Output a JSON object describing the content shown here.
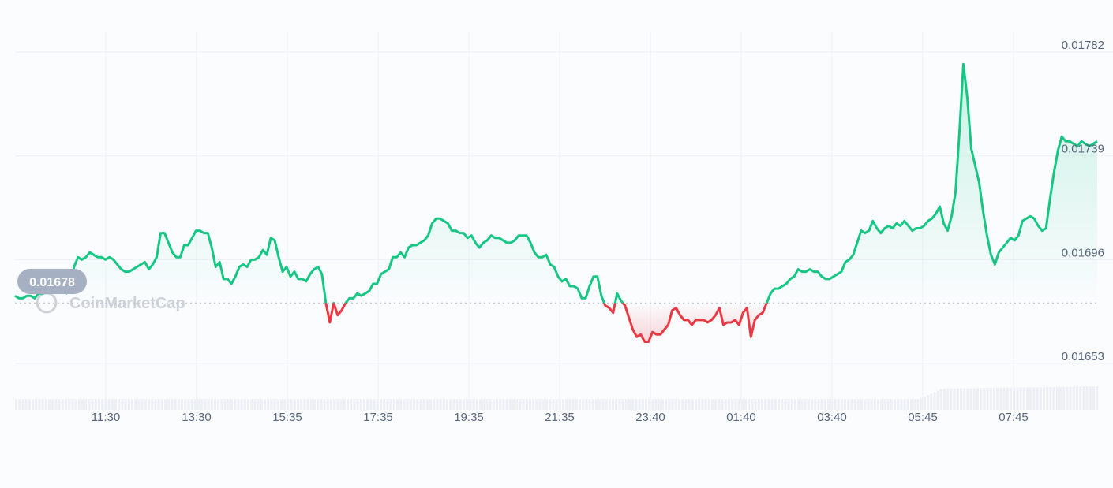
{
  "chart_data": {
    "type": "area",
    "x_ticks": [
      "11:30",
      "13:30",
      "15:35",
      "17:35",
      "19:35",
      "21:35",
      "23:40",
      "01:40",
      "03:40",
      "05:45",
      "07:45"
    ],
    "y_ticks": [
      0.01782,
      0.01739,
      0.01696,
      0.01653
    ],
    "y_tick_labels": [
      "0.01782",
      "0.01739",
      "0.01696",
      "0.01653"
    ],
    "ylim": [
      0.01636,
      0.01791
    ],
    "baseline": 0.01678,
    "baseline_label": "0.01678",
    "grid": true,
    "watermark": "CoinMarketCap",
    "colors": {
      "up": "#16c784",
      "down": "#ea3943",
      "badge": "#a6b0c3",
      "grid": "#eff2f5"
    },
    "series": [
      {
        "values": [
          0.01681,
          0.0168,
          0.0168,
          0.01681,
          0.01681,
          0.0168,
          0.01682,
          0.01682,
          0.01683,
          0.01685,
          0.01685,
          0.01687,
          0.01685,
          0.01682,
          0.01684,
          0.01693,
          0.01697,
          0.01696,
          0.01697,
          0.01699,
          0.01698,
          0.01697,
          0.01697,
          0.01696,
          0.01697,
          0.01696,
          0.01694,
          0.01692,
          0.01691,
          0.01691,
          0.01692,
          0.01693,
          0.01694,
          0.01695,
          0.01692,
          0.01694,
          0.01697,
          0.01707,
          0.01707,
          0.01703,
          0.01699,
          0.01697,
          0.01697,
          0.01702,
          0.01702,
          0.01705,
          0.01708,
          0.01708,
          0.01707,
          0.01707,
          0.01701,
          0.01693,
          0.01695,
          0.01688,
          0.01688,
          0.01686,
          0.01689,
          0.01693,
          0.01694,
          0.01693,
          0.01696,
          0.01696,
          0.01697,
          0.017,
          0.01698,
          0.01705,
          0.01704,
          0.01697,
          0.01691,
          0.01693,
          0.01689,
          0.01691,
          0.01688,
          0.01688,
          0.01687,
          0.0169,
          0.01692,
          0.01693,
          0.0169,
          0.01678,
          0.0167,
          0.01678,
          0.01673,
          0.01675,
          0.01678,
          0.0168,
          0.0168,
          0.01682,
          0.01681,
          0.01682,
          0.01683,
          0.01686,
          0.01686,
          0.0169,
          0.01691,
          0.01692,
          0.01697,
          0.01697,
          0.01699,
          0.01697,
          0.01701,
          0.01702,
          0.01702,
          0.01703,
          0.01704,
          0.01706,
          0.01711,
          0.01713,
          0.01713,
          0.01712,
          0.01711,
          0.01708,
          0.01708,
          0.01707,
          0.01707,
          0.01705,
          0.01706,
          0.01703,
          0.01701,
          0.01703,
          0.01704,
          0.01706,
          0.01705,
          0.01705,
          0.01704,
          0.01703,
          0.01703,
          0.01704,
          0.01706,
          0.01706,
          0.01706,
          0.01703,
          0.01699,
          0.01697,
          0.01697,
          0.01698,
          0.01694,
          0.01693,
          0.01689,
          0.01687,
          0.01688,
          0.01685,
          0.01685,
          0.01684,
          0.0168,
          0.0168,
          0.01685,
          0.01689,
          0.01689,
          0.01681,
          0.01677,
          0.01676,
          0.01674,
          0.01682,
          0.01679,
          0.01677,
          0.01672,
          0.01667,
          0.01664,
          0.01665,
          0.01662,
          0.01662,
          0.01666,
          0.01665,
          0.01665,
          0.01667,
          0.01669,
          0.01675,
          0.01676,
          0.01673,
          0.01671,
          0.01671,
          0.01669,
          0.01671,
          0.01671,
          0.01671,
          0.0167,
          0.01671,
          0.01673,
          0.01676,
          0.01669,
          0.0167,
          0.0167,
          0.01671,
          0.01669,
          0.01674,
          0.01676,
          0.01664,
          0.01671,
          0.01673,
          0.01674,
          0.01678,
          0.01682,
          0.01684,
          0.01684,
          0.01685,
          0.01686,
          0.01688,
          0.01689,
          0.01692,
          0.01691,
          0.01691,
          0.01692,
          0.01691,
          0.01691,
          0.01689,
          0.01688,
          0.01688,
          0.01689,
          0.0169,
          0.01691,
          0.01695,
          0.01696,
          0.01698,
          0.01703,
          0.01708,
          0.01707,
          0.01708,
          0.01712,
          0.01709,
          0.01707,
          0.01709,
          0.0171,
          0.01709,
          0.01711,
          0.0171,
          0.01712,
          0.0171,
          0.01708,
          0.01709,
          0.01709,
          0.0171,
          0.01712,
          0.01713,
          0.01715,
          0.01718,
          0.01711,
          0.01708,
          0.01714,
          0.01724,
          0.01749,
          0.01777,
          0.01763,
          0.01742,
          0.01735,
          0.01728,
          0.01716,
          0.01706,
          0.01698,
          0.01694,
          0.01699,
          0.01701,
          0.01703,
          0.01705,
          0.01704,
          0.01706,
          0.01712,
          0.01713,
          0.01714,
          0.01713,
          0.0171,
          0.01708,
          0.01709,
          0.01721,
          0.01732,
          0.01741,
          0.01747,
          0.01745,
          0.01745,
          0.01744,
          0.01743,
          0.01745,
          0.01744,
          0.01743,
          0.01744,
          0.01745
        ]
      }
    ]
  }
}
